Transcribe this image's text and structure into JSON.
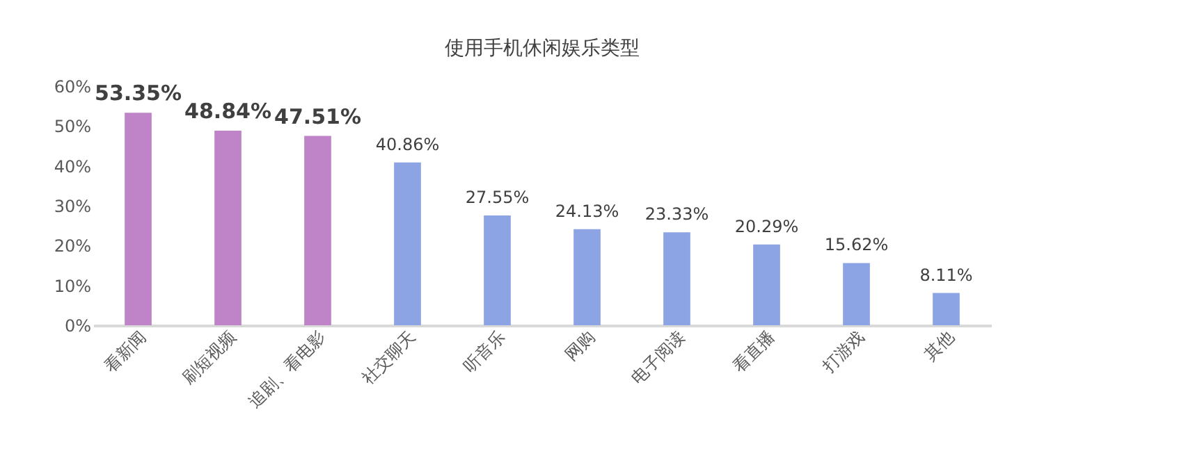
{
  "chart_data": {
    "type": "bar",
    "title": "使用手机休闲娱乐类型",
    "categories": [
      "看新闻",
      "刷短视频",
      "追剧、看电影",
      "社交聊天",
      "听音乐",
      "网购",
      "电子阅读",
      "看直播",
      "打游戏",
      "其他"
    ],
    "values": [
      53.35,
      48.84,
      47.51,
      40.86,
      27.55,
      24.13,
      23.33,
      20.29,
      15.62,
      8.11
    ],
    "value_labels": [
      "53.35%",
      "48.84%",
      "47.51%",
      "40.86%",
      "27.55%",
      "24.13%",
      "23.33%",
      "20.29%",
      "15.62%",
      "8.11%"
    ],
    "colors": [
      "#bf84c8",
      "#bf84c8",
      "#bf84c8",
      "#8ca3e4",
      "#8ca3e4",
      "#8ca3e4",
      "#8ca3e4",
      "#8ca3e4",
      "#8ca3e4",
      "#8ca3e4"
    ],
    "ylim": [
      0,
      60
    ],
    "yticks": [
      {
        "value": 0,
        "label": "0%"
      },
      {
        "value": 10,
        "label": "10%"
      },
      {
        "value": 20,
        "label": "20%"
      },
      {
        "value": 30,
        "label": "30%"
      },
      {
        "value": 40,
        "label": "40%"
      },
      {
        "value": 50,
        "label": "50%"
      },
      {
        "value": 60,
        "label": "60%"
      }
    ],
    "grid": false
  }
}
